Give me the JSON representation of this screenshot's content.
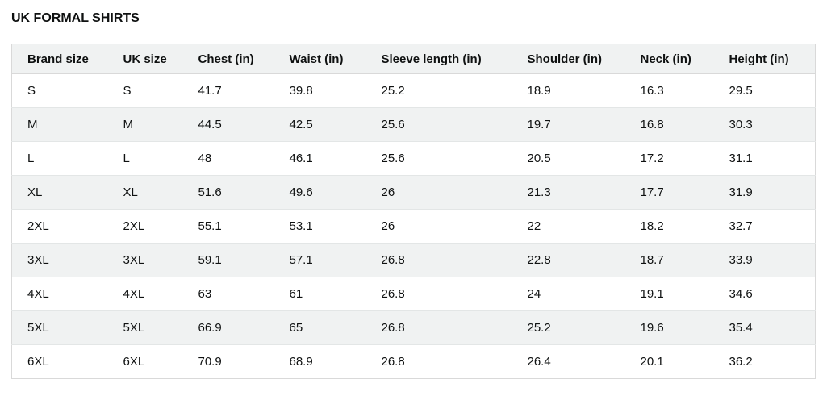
{
  "title": "UK FORMAL SHIRTS",
  "table": {
    "columns": [
      "Brand size",
      "UK size",
      "Chest (in)",
      "Waist (in)",
      "Sleeve length (in)",
      "Shoulder (in)",
      "Neck (in)",
      "Height (in)"
    ],
    "rows": [
      [
        "S",
        "S",
        "41.7",
        "39.8",
        "25.2",
        "18.9",
        "16.3",
        "29.5"
      ],
      [
        "M",
        "M",
        "44.5",
        "42.5",
        "25.6",
        "19.7",
        "16.8",
        "30.3"
      ],
      [
        "L",
        "L",
        "48",
        "46.1",
        "25.6",
        "20.5",
        "17.2",
        "31.1"
      ],
      [
        "XL",
        "XL",
        "51.6",
        "49.6",
        "26",
        "21.3",
        "17.7",
        "31.9"
      ],
      [
        "2XL",
        "2XL",
        "55.1",
        "53.1",
        "26",
        "22",
        "18.2",
        "32.7"
      ],
      [
        "3XL",
        "3XL",
        "59.1",
        "57.1",
        "26.8",
        "22.8",
        "18.7",
        "33.9"
      ],
      [
        "4XL",
        "4XL",
        "63",
        "61",
        "26.8",
        "24",
        "19.1",
        "34.6"
      ],
      [
        "5XL",
        "5XL",
        "66.9",
        "65",
        "26.8",
        "25.2",
        "19.6",
        "35.4"
      ],
      [
        "6XL",
        "6XL",
        "70.9",
        "68.9",
        "26.8",
        "26.4",
        "20.1",
        "36.2"
      ]
    ]
  },
  "colors": {
    "header_bg": "#f0f2f2",
    "stripe_bg": "#f0f2f2",
    "border": "#d9d9d9",
    "text": "#0f1111"
  }
}
